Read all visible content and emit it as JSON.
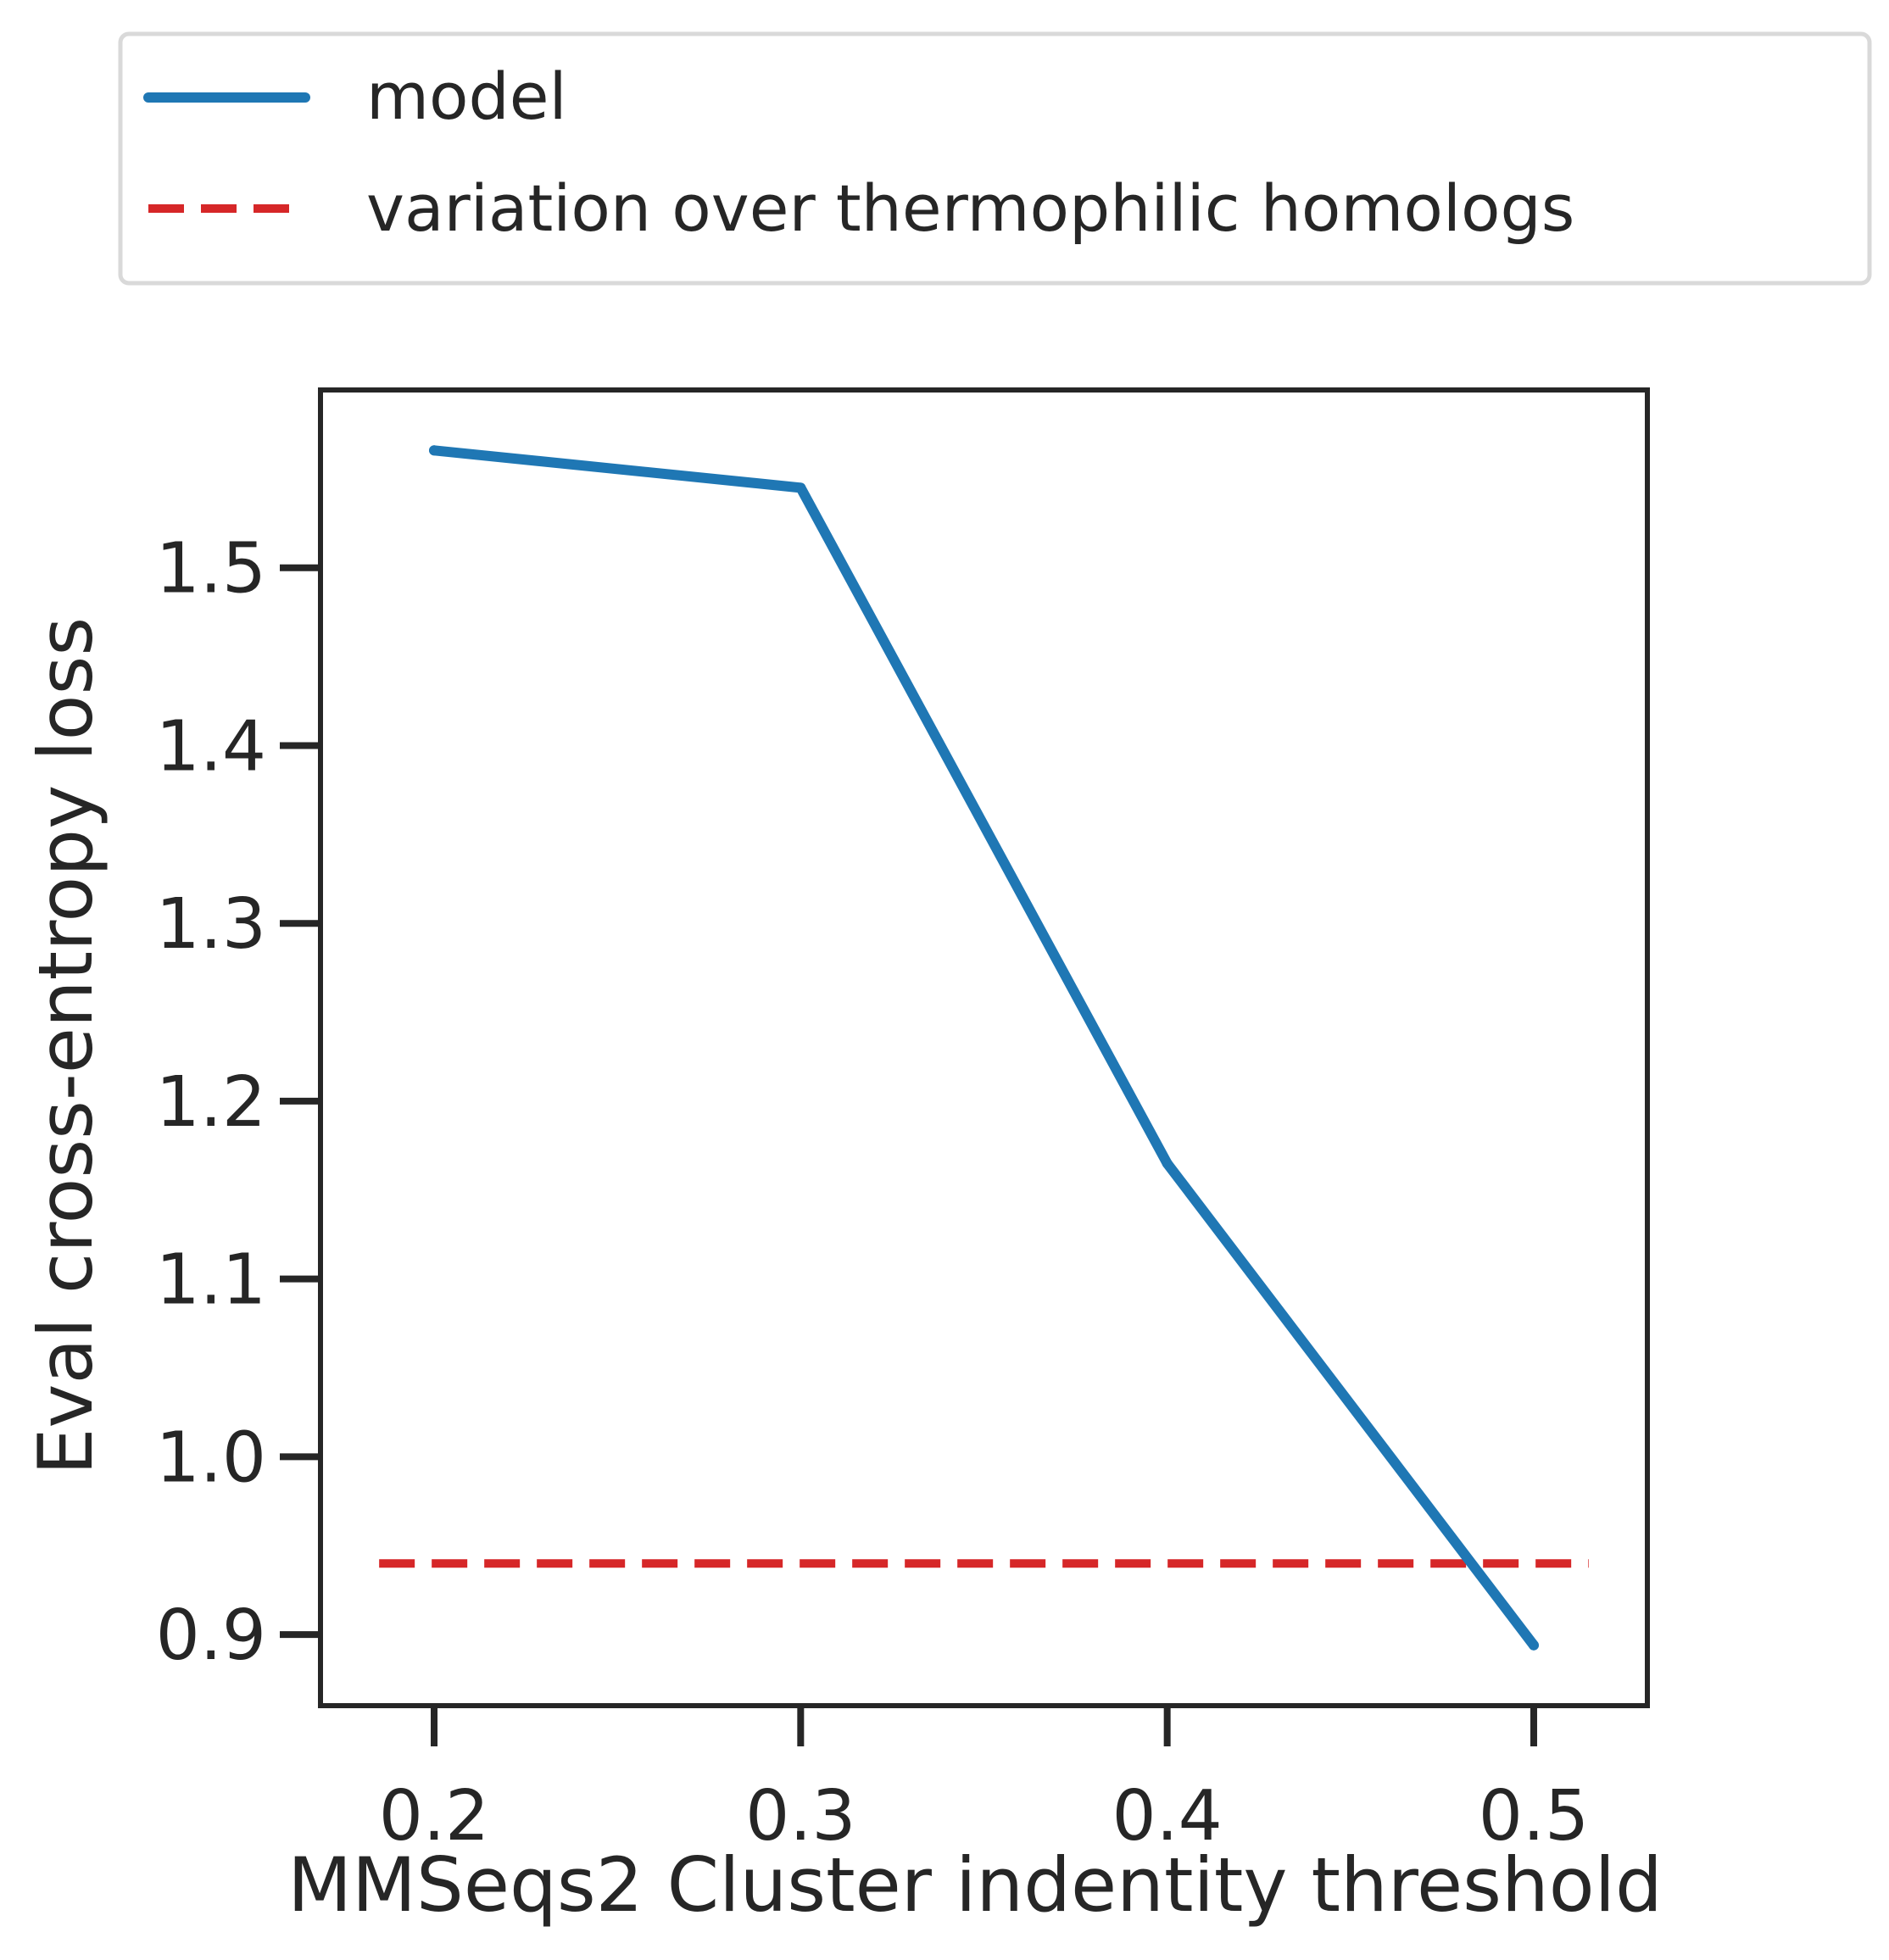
{
  "chart_data": {
    "type": "line",
    "xlabel": "MMSeqs2 Cluster indentity threshold",
    "ylabel": "Eval cross-entropy loss",
    "xlim": [
      0.169,
      0.531
    ],
    "ylim": [
      0.86,
      1.6
    ],
    "xticks": [
      {
        "value": 0.2,
        "label": "0.2"
      },
      {
        "value": 0.3,
        "label": "0.3"
      },
      {
        "value": 0.4,
        "label": "0.4"
      },
      {
        "value": 0.5,
        "label": "0.5"
      }
    ],
    "yticks": [
      {
        "value": 0.9,
        "label": "0.9"
      },
      {
        "value": 1.0,
        "label": "1.0"
      },
      {
        "value": 1.1,
        "label": "1.1"
      },
      {
        "value": 1.2,
        "label": "1.2"
      },
      {
        "value": 1.3,
        "label": "1.3"
      },
      {
        "value": 1.4,
        "label": "1.4"
      },
      {
        "value": 1.5,
        "label": "1.5"
      }
    ],
    "series": [
      {
        "name": "model",
        "style": "solid",
        "color": "#1f77b4",
        "x": [
          0.2,
          0.3,
          0.4,
          0.5
        ],
        "y": [
          1.566,
          1.545,
          1.165,
          0.894
        ]
      }
    ],
    "hlines": [
      {
        "name": "variation over thermophilic homologs",
        "style": "dashed",
        "color": "#d62728",
        "y": 0.94,
        "xmin": 0.185,
        "xmax": 0.515
      }
    ],
    "legend": {
      "placement": "top, above plot",
      "entries": [
        "model",
        "variation over thermophilic homologs"
      ]
    },
    "grid": false
  }
}
